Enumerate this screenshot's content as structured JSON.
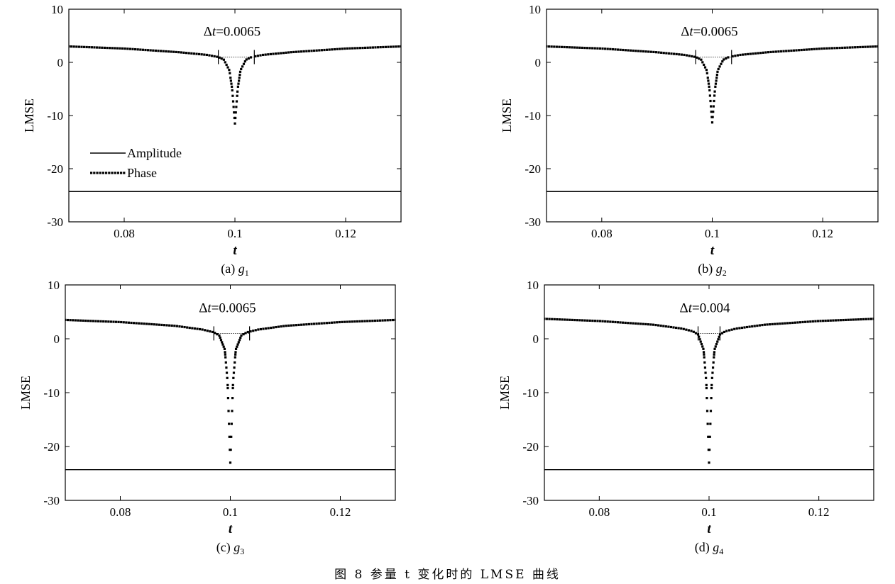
{
  "figure_caption": "图 8   参量 t 变化时的 LMSE 曲线",
  "legend": {
    "amplitude": "Amplitude",
    "phase": "Phase"
  },
  "colors": {
    "ink": "#000000"
  },
  "chart_data": [
    {
      "type": "line",
      "panel_label": "(a)",
      "panel_var": "g",
      "panel_sub": "1",
      "xlabel": "t",
      "ylabel": "LMSE",
      "xlim": [
        0.07,
        0.13
      ],
      "ylim": [
        -30,
        10
      ],
      "xticks": [
        0.08,
        0.1,
        0.12
      ],
      "xtick_labels": [
        "0.08",
        "0.1",
        "0.12"
      ],
      "yticks": [
        10,
        0,
        -10,
        -20,
        -30
      ],
      "ytick_labels": [
        "10",
        "0",
        "-10",
        "-20",
        "-30"
      ],
      "annotation": {
        "text_prefix": "Δ",
        "text_var": "t",
        "text_value": "=0.0065",
        "x_left": 0.097,
        "x_right": 0.1035,
        "y": 1.0
      },
      "series": [
        {
          "legend_key": "amplitude",
          "style": "solid",
          "x": [
            0.07,
            0.13
          ],
          "y": [
            -24.3,
            -24.3
          ]
        },
        {
          "legend_key": "phase",
          "style": "dotted",
          "x": [
            0.07,
            0.08,
            0.09,
            0.095,
            0.097,
            0.098,
            0.099,
            0.0995,
            0.1,
            0.1005,
            0.101,
            0.102,
            0.103,
            0.105,
            0.11,
            0.12,
            0.13
          ],
          "y": [
            3.0,
            2.6,
            1.9,
            1.4,
            1.0,
            0.5,
            -1.5,
            -5.0,
            -11.5,
            -5.0,
            -1.5,
            0.5,
            1.0,
            1.4,
            1.9,
            2.6,
            3.0
          ]
        }
      ],
      "legend_shown": true
    },
    {
      "type": "line",
      "panel_label": "(b)",
      "panel_var": "g",
      "panel_sub": "2",
      "xlabel": "t",
      "ylabel": "LMSE",
      "xlim": [
        0.07,
        0.13
      ],
      "ylim": [
        -30,
        10
      ],
      "xticks": [
        0.08,
        0.1,
        0.12
      ],
      "xtick_labels": [
        "0.08",
        "0.1",
        "0.12"
      ],
      "yticks": [
        10,
        0,
        -10,
        -20,
        -30
      ],
      "ytick_labels": [
        "10",
        "0",
        "-10",
        "-20",
        "-30"
      ],
      "annotation": {
        "text_prefix": "Δ",
        "text_var": "t",
        "text_value": "=0.0065",
        "x_left": 0.097,
        "x_right": 0.1035,
        "y": 1.0
      },
      "series": [
        {
          "legend_key": "amplitude",
          "style": "solid",
          "x": [
            0.07,
            0.13
          ],
          "y": [
            -24.3,
            -24.3
          ]
        },
        {
          "legend_key": "phase",
          "style": "dotted",
          "x": [
            0.07,
            0.08,
            0.09,
            0.095,
            0.097,
            0.098,
            0.099,
            0.0995,
            0.1,
            0.1005,
            0.101,
            0.102,
            0.103,
            0.105,
            0.11,
            0.12,
            0.13
          ],
          "y": [
            3.0,
            2.6,
            1.9,
            1.4,
            1.0,
            0.5,
            -1.5,
            -5.0,
            -11.3,
            -5.0,
            -1.5,
            0.5,
            1.0,
            1.4,
            1.9,
            2.6,
            3.0
          ]
        }
      ],
      "legend_shown": false
    },
    {
      "type": "line",
      "panel_label": "(c)",
      "panel_var": "g",
      "panel_sub": "3",
      "xlabel": "t",
      "ylabel": "LMSE",
      "xlim": [
        0.07,
        0.13
      ],
      "ylim": [
        -30,
        10
      ],
      "xticks": [
        0.08,
        0.1,
        0.12
      ],
      "xtick_labels": [
        "0.08",
        "0.1",
        "0.12"
      ],
      "yticks": [
        10,
        0,
        -10,
        -20,
        -30
      ],
      "ytick_labels": [
        "10",
        "0",
        "-10",
        "-20",
        "-30"
      ],
      "annotation": {
        "text_prefix": "Δ",
        "text_var": "t",
        "text_value": "=0.0065",
        "x_left": 0.097,
        "x_right": 0.1035,
        "y": 1.0
      },
      "series": [
        {
          "legend_key": "amplitude",
          "style": "solid",
          "x": [
            0.07,
            0.13
          ],
          "y": [
            -24.3,
            -24.3
          ]
        },
        {
          "legend_key": "phase",
          "style": "dotted",
          "x": [
            0.07,
            0.08,
            0.09,
            0.095,
            0.097,
            0.098,
            0.099,
            0.0995,
            0.1,
            0.1005,
            0.101,
            0.102,
            0.103,
            0.105,
            0.11,
            0.12,
            0.13
          ],
          "y": [
            3.5,
            3.1,
            2.4,
            1.7,
            1.2,
            0.6,
            -2.0,
            -8.0,
            -23.0,
            -8.0,
            -2.0,
            0.6,
            1.2,
            1.7,
            2.4,
            3.1,
            3.5
          ]
        }
      ],
      "legend_shown": false
    },
    {
      "type": "line",
      "panel_label": "(d)",
      "panel_var": "g",
      "panel_sub": "4",
      "xlabel": "t",
      "ylabel": "LMSE",
      "xlim": [
        0.07,
        0.13
      ],
      "ylim": [
        -30,
        10
      ],
      "xticks": [
        0.08,
        0.1,
        0.12
      ],
      "xtick_labels": [
        "0.08",
        "0.1",
        "0.12"
      ],
      "yticks": [
        10,
        0,
        -10,
        -20,
        -30
      ],
      "ytick_labels": [
        "10",
        "0",
        "-10",
        "-20",
        "-30"
      ],
      "annotation": {
        "text_prefix": "Δ",
        "text_var": "t",
        "text_value": "=0.004",
        "x_left": 0.098,
        "x_right": 0.102,
        "y": 1.0
      },
      "series": [
        {
          "legend_key": "amplitude",
          "style": "solid",
          "x": [
            0.07,
            0.13
          ],
          "y": [
            -24.3,
            -24.3
          ]
        },
        {
          "legend_key": "phase",
          "style": "dotted",
          "x": [
            0.07,
            0.08,
            0.09,
            0.095,
            0.097,
            0.098,
            0.099,
            0.0995,
            0.1,
            0.1005,
            0.101,
            0.102,
            0.103,
            0.105,
            0.11,
            0.12,
            0.13
          ],
          "y": [
            3.7,
            3.3,
            2.6,
            1.9,
            1.4,
            0.8,
            -2.0,
            -8.0,
            -23.0,
            -8.0,
            -2.0,
            0.8,
            1.4,
            1.9,
            2.6,
            3.3,
            3.7
          ]
        }
      ],
      "legend_shown": false
    }
  ]
}
